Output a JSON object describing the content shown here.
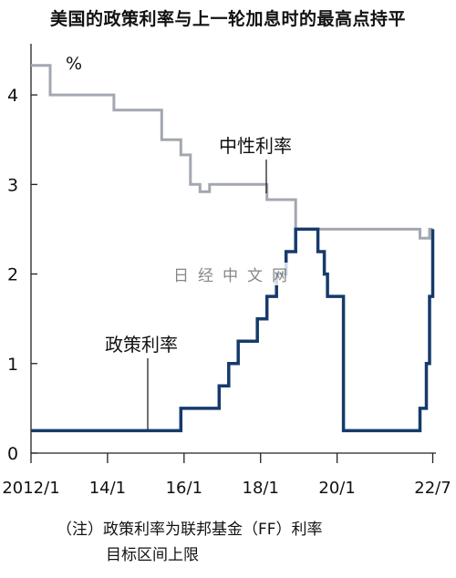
{
  "title": "美国的政策利率与上一轮加息时的最高点持平",
  "watermark": "日经中文网",
  "notes": {
    "line1": "（注）政策利率为联邦基金（FF）利率",
    "line2": "目标区间上限"
  },
  "chart_data": {
    "type": "line",
    "title": "美国的政策利率与上一轮加息时的最高点持平",
    "xlabel": "",
    "ylabel": "",
    "y_unit": "%",
    "ylim": [
      0,
      4.5
    ],
    "xlim": [
      "2012-01",
      "2022-08"
    ],
    "y_ticks": [
      0,
      1,
      2,
      3,
      4
    ],
    "x_ticks": [
      {
        "date": "2012-01",
        "label": "2012/1"
      },
      {
        "date": "2014-01",
        "label": "14/1"
      },
      {
        "date": "2016-01",
        "label": "16/1"
      },
      {
        "date": "2018-01",
        "label": "18/1"
      },
      {
        "date": "2020-01",
        "label": "20/1"
      },
      {
        "date": "2022-07",
        "label": "22/7"
      }
    ],
    "grid": false,
    "series": [
      {
        "name": "中性利率",
        "color": "#a3a7b0",
        "step": true,
        "points": [
          [
            "2012-01",
            4.33
          ],
          [
            "2012-07",
            4.0
          ],
          [
            "2014-03",
            3.83
          ],
          [
            "2015-06",
            3.5
          ],
          [
            "2015-12",
            3.33
          ],
          [
            "2016-03",
            3.0
          ],
          [
            "2016-06",
            2.92
          ],
          [
            "2016-09",
            3.0
          ],
          [
            "2018-03",
            2.83
          ],
          [
            "2018-12",
            2.5
          ],
          [
            "2022-03",
            2.4
          ],
          [
            "2022-06",
            2.5
          ],
          [
            "2022-07",
            2.5
          ]
        ]
      },
      {
        "name": "政策利率",
        "color": "#163a6b",
        "step": true,
        "points": [
          [
            "2012-01",
            0.25
          ],
          [
            "2015-12",
            0.5
          ],
          [
            "2016-12",
            0.75
          ],
          [
            "2017-03",
            1.0
          ],
          [
            "2017-06",
            1.25
          ],
          [
            "2017-12",
            1.5
          ],
          [
            "2018-03",
            1.75
          ],
          [
            "2018-06",
            2.0
          ],
          [
            "2018-09",
            2.25
          ],
          [
            "2018-12",
            2.5
          ],
          [
            "2019-07",
            2.25
          ],
          [
            "2019-09",
            2.0
          ],
          [
            "2019-10",
            1.75
          ],
          [
            "2020-03",
            0.25
          ],
          [
            "2022-03",
            0.5
          ],
          [
            "2022-05",
            1.0
          ],
          [
            "2022-06",
            1.75
          ],
          [
            "2022-07",
            2.5
          ]
        ]
      }
    ],
    "annotations": [
      {
        "text": "中性利率",
        "series": "中性利率"
      },
      {
        "text": "政策利率",
        "series": "政策利率"
      }
    ]
  }
}
